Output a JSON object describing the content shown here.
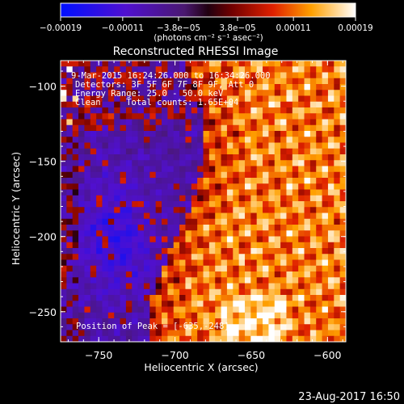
{
  "chart_data": {
    "type": "heatmap",
    "title": "Reconstructed RHESSI Image",
    "xlabel": "Heliocentric X (arcsec)",
    "ylabel": "Heliocentric Y (arcsec)",
    "xlim": [
      -775,
      -588
    ],
    "ylim": [
      -270,
      -83
    ],
    "x_ticks": [
      -750,
      -700,
      -650,
      -600
    ],
    "y_ticks": [
      -100,
      -150,
      -200,
      -250
    ],
    "x_tick_labels": [
      "−750",
      "−700",
      "−650",
      "−600"
    ],
    "y_tick_labels": [
      "−100",
      "−150",
      "−200",
      "−250"
    ],
    "colorbar": {
      "range": [
        -0.00019,
        0.00019
      ],
      "ticks": [
        -0.00019,
        -0.00011,
        -3.8e-05,
        3.8e-05,
        0.00011,
        0.00019
      ],
      "tick_labels": [
        "−0.00019",
        "−0.00011",
        "−3.8e−05",
        "3.8e−05",
        "0.00011",
        "0.00019"
      ],
      "unit_label": "(photons cm⁻² s⁻¹ asec⁻²)"
    },
    "annotations": {
      "time_range": "9-Mar-2015 16:24:26.000 to 16:34:26.000",
      "detectors": "Detectors: 3F 5F 6F 7F 8F 9F, Att 0",
      "energy_range": "Energy Range: 25.0 - 50.0 keV",
      "method": "Clean     Total counts: 1.65E+04",
      "peak": "Position of Peak = [-635,-248]"
    },
    "peak_position": [
      -635,
      -248
    ],
    "footer_date": "23-Aug-2017 16:50"
  }
}
